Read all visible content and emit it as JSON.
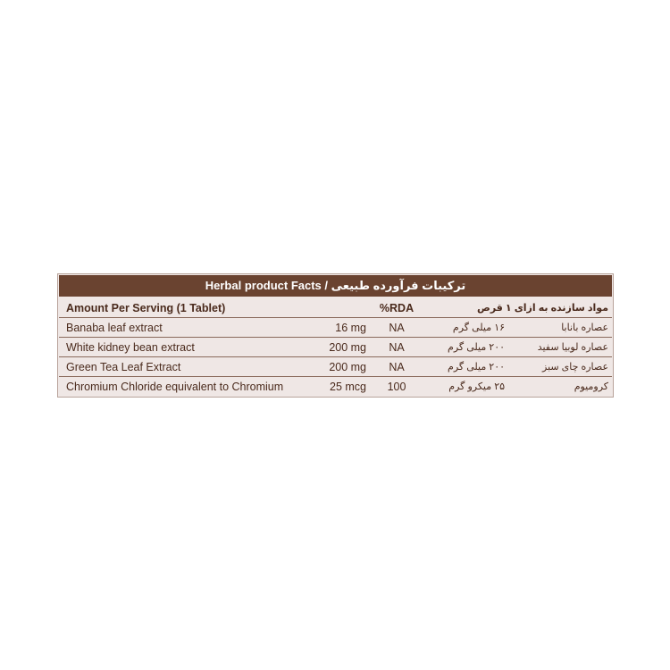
{
  "label": {
    "title": "Herbal product Facts / ترکیبات فرآورده طبیعی",
    "header": {
      "serving": "Amount Per Serving (1 Tablet)",
      "rda": "%RDA",
      "serving_fa": "مواد سازنده به ازای ۱ قرص"
    },
    "rows": [
      [
        "Banaba leaf extract",
        "16 mg",
        "NA",
        "۱۶ میلی گرم",
        "عصاره بانابا"
      ],
      [
        "White kidney bean extract",
        "200 mg",
        "NA",
        "۲۰۰ میلی گرم",
        "عصاره لوبیا سفید"
      ],
      [
        "Green Tea Leaf Extract",
        "200 mg",
        "NA",
        "۲۰۰ میلی گرم",
        "عصاره چای سبز"
      ],
      [
        "Chromium Chloride equivalent to Chromium",
        "25 mcg",
        "100",
        "۲۵ میکرو گرم",
        "کرومیوم"
      ]
    ]
  }
}
